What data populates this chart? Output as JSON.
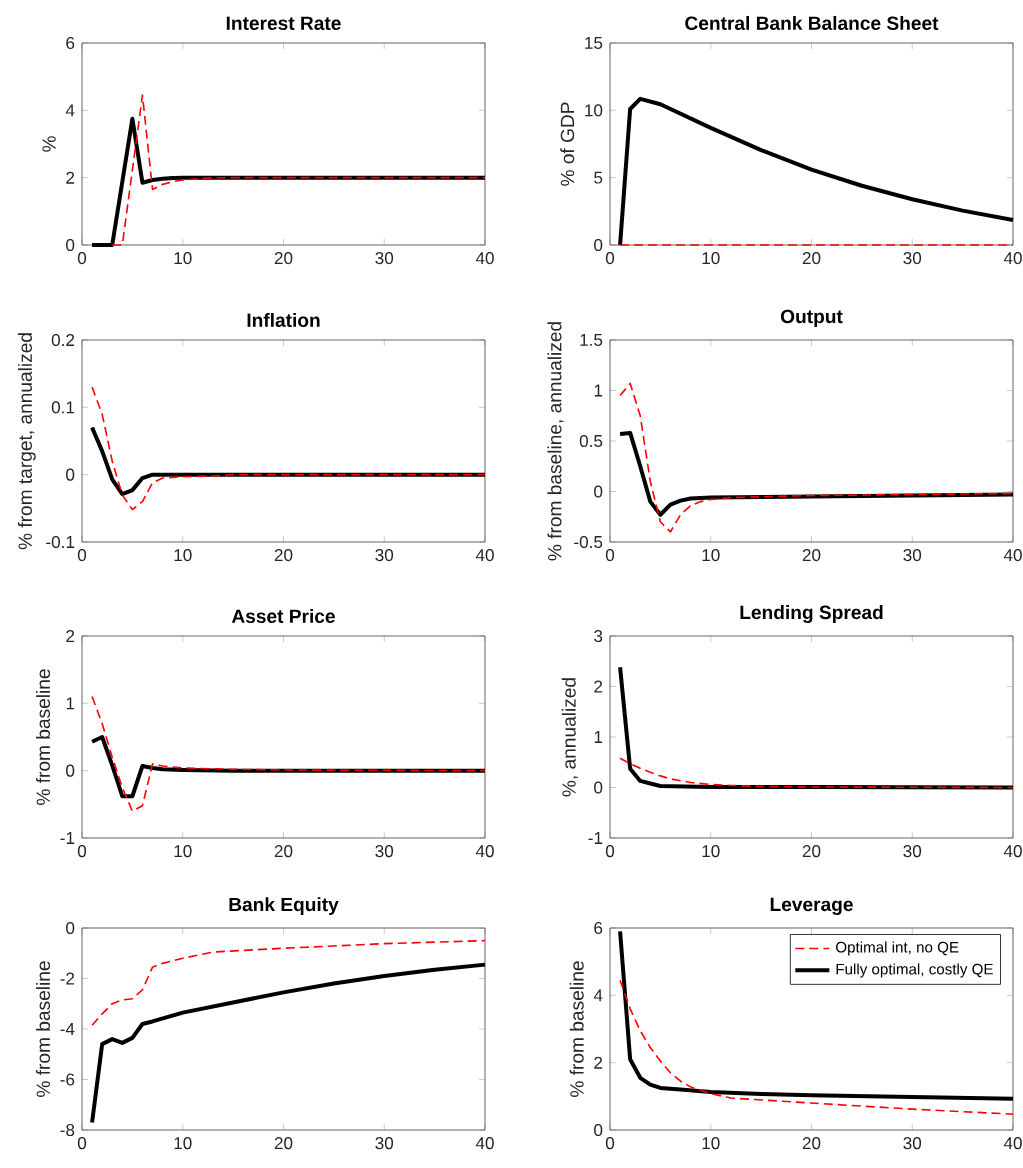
{
  "chart_data": [
    {
      "type": "line",
      "title": "Interest Rate",
      "ylabel": "%",
      "xlim": [
        0,
        40
      ],
      "xticks": [
        0,
        10,
        20,
        30,
        40
      ],
      "ylim": [
        0,
        6
      ],
      "yticks": [
        0,
        2,
        4,
        6
      ],
      "series": [
        {
          "color": "#ff0000",
          "line_style": "dashed",
          "x": [
            3,
            4,
            6,
            7,
            8,
            9,
            10,
            12,
            15,
            40
          ],
          "values": [
            0,
            0,
            4.45,
            1.65,
            1.8,
            1.88,
            1.93,
            1.98,
            2,
            2
          ]
        },
        {
          "color": "#000000",
          "line_style": "solid",
          "x": [
            1,
            2,
            3,
            5,
            6,
            7,
            8,
            9,
            10,
            40
          ],
          "values": [
            0,
            0,
            0,
            3.75,
            1.85,
            1.93,
            1.97,
            1.99,
            2,
            2
          ]
        }
      ]
    },
    {
      "type": "line",
      "title": "Central Bank Balance Sheet",
      "ylabel": "% of GDP",
      "xlim": [
        0,
        40
      ],
      "xticks": [
        0,
        10,
        20,
        30,
        40
      ],
      "ylim": [
        0,
        15
      ],
      "yticks": [
        0,
        5,
        10,
        15
      ],
      "series": [
        {
          "color": "#ff0000",
          "line_style": "dashed",
          "x": [
            1,
            40
          ],
          "values": [
            0,
            0
          ]
        },
        {
          "color": "#000000",
          "line_style": "solid",
          "x": [
            1,
            2,
            3,
            5,
            10,
            15,
            20,
            25,
            30,
            35,
            40
          ],
          "values": [
            0,
            10.1,
            10.85,
            10.45,
            8.7,
            7.05,
            5.6,
            4.4,
            3.4,
            2.55,
            1.85
          ]
        }
      ]
    },
    {
      "type": "line",
      "title": "Inflation",
      "ylabel": "% from target, annualized",
      "xlim": [
        0,
        40
      ],
      "xticks": [
        0,
        10,
        20,
        30,
        40
      ],
      "ylim": [
        -0.1,
        0.2
      ],
      "yticks": [
        -0.1,
        0,
        0.1,
        0.2
      ],
      "series": [
        {
          "color": "#ff0000",
          "line_style": "dashed",
          "x": [
            1,
            2,
            3,
            4,
            5,
            6,
            7,
            8,
            10,
            13,
            15,
            40
          ],
          "values": [
            0.13,
            0.09,
            0.02,
            -0.03,
            -0.052,
            -0.04,
            -0.012,
            -0.005,
            -0.003,
            -0.002,
            0,
            0
          ]
        },
        {
          "color": "#000000",
          "line_style": "solid",
          "x": [
            1,
            2,
            3,
            4,
            5,
            6,
            7,
            8,
            10,
            40
          ],
          "values": [
            0.07,
            0.035,
            -0.007,
            -0.029,
            -0.023,
            -0.005,
            0,
            0,
            0,
            0
          ]
        }
      ]
    },
    {
      "type": "line",
      "title": "Output",
      "ylabel": "% from baseline, annualized",
      "xlim": [
        0,
        40
      ],
      "xticks": [
        0,
        10,
        20,
        30,
        40
      ],
      "ylim": [
        -0.5,
        1.5
      ],
      "yticks": [
        -0.5,
        0,
        0.5,
        1,
        1.5
      ],
      "series": [
        {
          "color": "#ff0000",
          "line_style": "dashed",
          "x": [
            1,
            2,
            3,
            4,
            5,
            6,
            7,
            8,
            9,
            10,
            12,
            20,
            30,
            40
          ],
          "values": [
            0.95,
            1.07,
            0.75,
            0.1,
            -0.3,
            -0.4,
            -0.23,
            -0.14,
            -0.1,
            -0.08,
            -0.06,
            -0.04,
            -0.03,
            -0.02
          ]
        },
        {
          "color": "#000000",
          "line_style": "solid",
          "x": [
            1,
            2,
            3,
            4,
            5,
            6,
            7,
            8,
            10,
            20,
            30,
            40
          ],
          "values": [
            0.57,
            0.58,
            0.25,
            -0.1,
            -0.23,
            -0.13,
            -0.09,
            -0.07,
            -0.06,
            -0.05,
            -0.04,
            -0.03
          ]
        }
      ]
    },
    {
      "type": "line",
      "title": "Asset Price",
      "ylabel": "% from baseline",
      "xlim": [
        0,
        40
      ],
      "xticks": [
        0,
        10,
        20,
        30,
        40
      ],
      "ylim": [
        -1,
        2
      ],
      "yticks": [
        -1,
        0,
        1,
        2
      ],
      "series": [
        {
          "color": "#ff0000",
          "line_style": "dashed",
          "x": [
            1,
            2,
            3,
            4,
            5,
            6,
            7,
            8,
            10,
            15,
            20,
            40
          ],
          "values": [
            1.1,
            0.7,
            0.2,
            -0.25,
            -0.6,
            -0.52,
            0.1,
            0.07,
            0.04,
            0.02,
            0.01,
            0
          ]
        },
        {
          "color": "#000000",
          "line_style": "solid",
          "x": [
            1,
            2,
            3,
            4,
            5,
            6,
            7,
            8,
            10,
            15,
            40
          ],
          "values": [
            0.43,
            0.5,
            0.08,
            -0.38,
            -0.38,
            0.07,
            0.04,
            0.02,
            0.01,
            0,
            0
          ]
        }
      ]
    },
    {
      "type": "line",
      "title": "Lending Spread",
      "ylabel": "%, annualized",
      "xlim": [
        0,
        40
      ],
      "xticks": [
        0,
        10,
        20,
        30,
        40
      ],
      "ylim": [
        -1,
        3
      ],
      "yticks": [
        -1,
        0,
        1,
        2,
        3
      ],
      "series": [
        {
          "color": "#ff0000",
          "line_style": "dashed",
          "x": [
            1,
            2,
            3,
            4,
            5,
            6,
            8,
            10,
            12,
            15,
            20,
            40
          ],
          "values": [
            0.58,
            0.47,
            0.38,
            0.3,
            0.23,
            0.17,
            0.1,
            0.06,
            0.04,
            0.02,
            0.01,
            0
          ]
        },
        {
          "color": "#000000",
          "line_style": "solid",
          "x": [
            1,
            2,
            3,
            4,
            5,
            10,
            20,
            40
          ],
          "values": [
            2.38,
            0.37,
            0.13,
            0.08,
            0.03,
            0.01,
            0.01,
            0
          ]
        }
      ]
    },
    {
      "type": "line",
      "title": "Bank Equity",
      "ylabel": "% from baseline",
      "xlim": [
        0,
        40
      ],
      "xticks": [
        0,
        10,
        20,
        30,
        40
      ],
      "ylim": [
        -8,
        0
      ],
      "yticks": [
        -8,
        -6,
        -4,
        -2,
        0
      ],
      "series": [
        {
          "color": "#ff0000",
          "line_style": "dashed",
          "x": [
            1,
            2,
            3,
            4,
            5,
            6,
            7,
            8,
            10,
            13,
            20,
            30,
            40
          ],
          "values": [
            -3.85,
            -3.4,
            -3.0,
            -2.85,
            -2.8,
            -2.45,
            -1.55,
            -1.4,
            -1.2,
            -0.95,
            -0.8,
            -0.62,
            -0.5
          ]
        },
        {
          "color": "#000000",
          "line_style": "solid",
          "x": [
            1,
            2,
            3,
            4,
            5,
            6,
            7,
            10,
            15,
            20,
            25,
            30,
            35,
            40
          ],
          "values": [
            -7.7,
            -4.6,
            -4.4,
            -4.55,
            -4.35,
            -3.8,
            -3.7,
            -3.35,
            -2.95,
            -2.55,
            -2.2,
            -1.9,
            -1.65,
            -1.45
          ]
        }
      ]
    },
    {
      "type": "line",
      "title": "Leverage",
      "ylabel": "% from baseline",
      "xlim": [
        0,
        40
      ],
      "xticks": [
        0,
        10,
        20,
        30,
        40
      ],
      "ylim": [
        0,
        6
      ],
      "yticks": [
        0,
        2,
        4,
        6
      ],
      "legend": "top right",
      "series": [
        {
          "name": "Optimal int, no QE",
          "color": "#ff0000",
          "line_style": "dashed",
          "x": [
            1,
            2,
            3,
            4,
            5,
            6,
            7,
            8,
            10,
            12,
            20,
            30,
            40
          ],
          "values": [
            4.45,
            3.6,
            2.95,
            2.45,
            2.05,
            1.7,
            1.45,
            1.28,
            1.08,
            0.95,
            0.8,
            0.62,
            0.47
          ]
        },
        {
          "name": "Fully optimal, costly QE",
          "color": "#000000",
          "line_style": "solid",
          "x": [
            1,
            2,
            3,
            4,
            5,
            7,
            10,
            15,
            20,
            30,
            40
          ],
          "values": [
            5.9,
            2.1,
            1.55,
            1.35,
            1.25,
            1.2,
            1.13,
            1.07,
            1.03,
            0.98,
            0.93
          ]
        }
      ]
    }
  ]
}
